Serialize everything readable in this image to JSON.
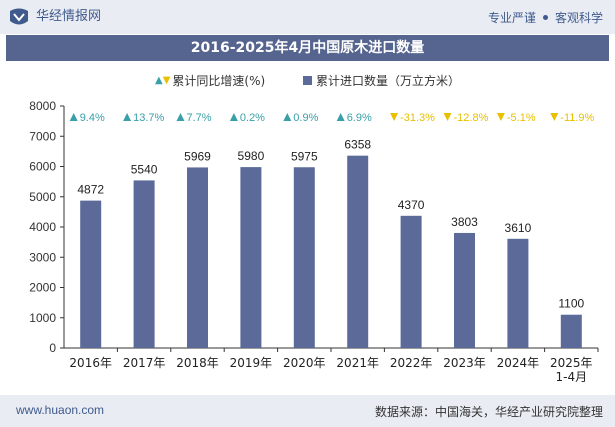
{
  "header": {
    "brand": "华经情报网",
    "slogan_left": "专业严谨",
    "slogan_right": "客观科学"
  },
  "title": "2016-2025年4月中国原木进口数量",
  "legend": {
    "growth": "累计同比增速(%)",
    "quantity": "累计进口数量（万立方米）"
  },
  "colors": {
    "bar": "#5b6a99",
    "up": "#3aa0a8",
    "down": "#e8c000",
    "title_bg": "#56658f"
  },
  "chart_data": {
    "type": "bar",
    "categories": [
      "2016年",
      "2017年",
      "2018年",
      "2019年",
      "2020年",
      "2021年",
      "2022年",
      "2023年",
      "2024年",
      "2025年\n1-4月"
    ],
    "series": [
      {
        "name": "累计进口数量（万立方米）",
        "values": [
          4872,
          5540,
          5969,
          5980,
          5975,
          6358,
          4370,
          3803,
          3610,
          1100
        ]
      },
      {
        "name": "累计同比增速(%)",
        "values": [
          9.4,
          13.7,
          7.7,
          0.2,
          0.9,
          6.9,
          -31.3,
          -12.8,
          -5.1,
          -11.9
        ]
      }
    ],
    "growth_labels": [
      "9.4%",
      "13.7%",
      "7.7%",
      "0.2%",
      "0.9%",
      "6.9%",
      "-31.3%",
      "-12.8%",
      "-5.1%",
      "-11.9%"
    ],
    "ylim": [
      0,
      8000
    ],
    "yticks": [
      0,
      1000,
      2000,
      3000,
      4000,
      5000,
      6000,
      7000,
      8000
    ],
    "grid": false
  },
  "footer": {
    "website": "www.huaon.com",
    "source": "数据来源：中国海关，华经产业研究院整理"
  }
}
